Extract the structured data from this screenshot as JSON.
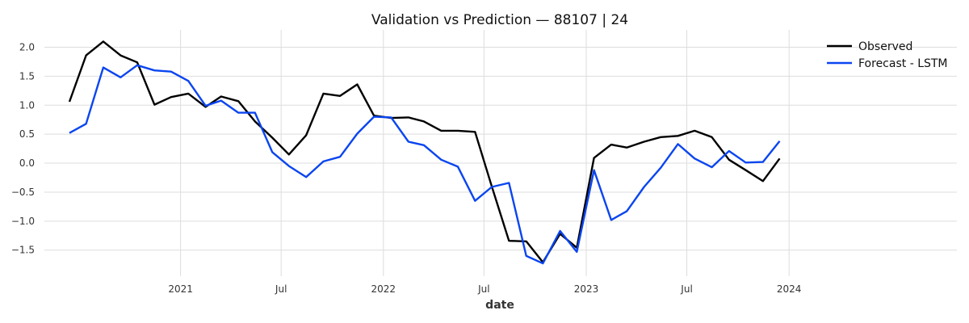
{
  "chart_data": {
    "type": "line",
    "title": "Validation vs Prediction — 88107 | 24",
    "xlabel": "date",
    "ylabel": "",
    "xlim": [
      "2020-05-01",
      "2024-10-29"
    ],
    "ylim": [
      -1.95,
      2.3
    ],
    "grid": true,
    "legend_position": "top-right",
    "x_ticks": [
      {
        "date": "2021-01-01",
        "label": "2021"
      },
      {
        "date": "2021-07-01",
        "label": "Jul"
      },
      {
        "date": "2022-01-01",
        "label": "2022"
      },
      {
        "date": "2022-07-01",
        "label": "Jul"
      },
      {
        "date": "2023-01-01",
        "label": "2023"
      },
      {
        "date": "2023-07-01",
        "label": "Jul"
      },
      {
        "date": "2024-01-01",
        "label": "2024"
      }
    ],
    "y_ticks": [
      2.0,
      1.5,
      1.0,
      0.5,
      0.0,
      -0.5,
      -1.0,
      -1.5
    ],
    "y_tick_labels": [
      "2.0",
      "1.5",
      "1.0",
      "0.5",
      "0.0",
      "−0.5",
      "−1.0",
      "−1.5"
    ],
    "x": [
      "2020-07-01",
      "2020-08-31",
      "2020-10-31",
      "2020-12-31",
      "2021-03-02",
      "2021-05-01",
      "2021-07-01",
      "2021-08-31",
      "2021-10-31",
      "2021-12-31",
      "2022-03-02",
      "2022-05-02",
      "2022-07-01",
      "2022-08-31",
      "2022-10-31",
      "2022-12-31",
      "2023-03-02",
      "2023-05-01",
      "2023-07-01",
      "2023-08-31",
      "2023-10-31",
      "2023-12-31",
      "2024-03-01",
      "2024-05-01",
      "2024-07-01",
      "2024-08-31",
      "2024-10-31",
      "2024-12-31"
    ],
    "series": [
      {
        "name": "Observed",
        "color": "#000000",
        "points": [
          [
            "2020-06-15",
            1.06
          ],
          [
            "2020-07-15",
            1.86
          ],
          [
            "2020-08-15",
            2.1
          ],
          [
            "2020-09-15",
            1.86
          ],
          [
            "2020-10-15",
            1.74
          ],
          [
            "2020-11-15",
            1.01
          ],
          [
            "2020-12-15",
            1.14
          ],
          [
            "2021-01-15",
            1.2
          ],
          [
            "2021-02-15",
            0.97
          ],
          [
            "2021-03-15",
            1.15
          ],
          [
            "2021-04-15",
            1.07
          ],
          [
            "2021-05-15",
            0.72
          ],
          [
            "2021-06-15",
            0.44
          ],
          [
            "2021-07-15",
            0.15
          ],
          [
            "2021-08-15",
            0.48
          ],
          [
            "2021-09-15",
            1.2
          ],
          [
            "2021-10-15",
            1.16
          ],
          [
            "2021-11-15",
            1.36
          ],
          [
            "2021-12-15",
            0.82
          ],
          [
            "2022-01-15",
            0.78
          ],
          [
            "2022-02-15",
            0.79
          ],
          [
            "2022-03-15",
            0.72
          ],
          [
            "2022-04-15",
            0.56
          ],
          [
            "2022-05-15",
            0.56
          ],
          [
            "2022-06-15",
            0.54
          ],
          [
            "2022-07-15",
            -0.4
          ],
          [
            "2022-08-15",
            -1.34
          ],
          [
            "2022-09-15",
            -1.35
          ],
          [
            "2022-10-15",
            -1.71
          ],
          [
            "2022-11-15",
            -1.22
          ],
          [
            "2022-12-15",
            -1.46
          ],
          [
            "2023-01-15",
            0.09
          ],
          [
            "2023-02-15",
            0.32
          ],
          [
            "2023-03-15",
            0.27
          ],
          [
            "2023-04-15",
            0.37
          ],
          [
            "2023-05-15",
            0.45
          ],
          [
            "2023-06-15",
            0.47
          ],
          [
            "2023-07-15",
            0.56
          ],
          [
            "2023-08-15",
            0.45
          ],
          [
            "2023-09-15",
            0.06
          ],
          [
            "2023-10-15",
            -0.12
          ],
          [
            "2023-11-15",
            -0.31
          ],
          [
            "2023-12-15",
            0.08
          ]
        ]
      },
      {
        "name": "Forecast - LSTM",
        "color": "#0a45f0",
        "points": [
          [
            "2020-06-15",
            0.52
          ],
          [
            "2020-07-15",
            0.68
          ],
          [
            "2020-08-15",
            1.65
          ],
          [
            "2020-09-15",
            1.48
          ],
          [
            "2020-10-15",
            1.69
          ],
          [
            "2020-11-15",
            1.6
          ],
          [
            "2020-12-15",
            1.58
          ],
          [
            "2021-01-15",
            1.42
          ],
          [
            "2021-02-15",
            0.99
          ],
          [
            "2021-03-15",
            1.08
          ],
          [
            "2021-04-15",
            0.87
          ],
          [
            "2021-05-15",
            0.87
          ],
          [
            "2021-06-15",
            0.19
          ],
          [
            "2021-07-15",
            -0.05
          ],
          [
            "2021-08-15",
            -0.24
          ],
          [
            "2021-09-15",
            0.03
          ],
          [
            "2021-10-15",
            0.11
          ],
          [
            "2021-11-15",
            0.51
          ],
          [
            "2021-12-15",
            0.8
          ],
          [
            "2022-01-15",
            0.79
          ],
          [
            "2022-02-15",
            0.37
          ],
          [
            "2022-03-15",
            0.31
          ],
          [
            "2022-04-15",
            0.06
          ],
          [
            "2022-05-15",
            -0.06
          ],
          [
            "2022-06-15",
            -0.65
          ],
          [
            "2022-07-15",
            -0.41
          ],
          [
            "2022-08-15",
            -0.34
          ],
          [
            "2022-09-15",
            -1.6
          ],
          [
            "2022-10-15",
            -1.73
          ],
          [
            "2022-11-15",
            -1.17
          ],
          [
            "2022-12-15",
            -1.53
          ],
          [
            "2023-01-15",
            -0.12
          ],
          [
            "2023-02-15",
            -0.98
          ],
          [
            "2023-03-15",
            -0.83
          ],
          [
            "2023-04-15",
            -0.41
          ],
          [
            "2023-05-15",
            -0.08
          ],
          [
            "2023-06-15",
            0.33
          ],
          [
            "2023-07-15",
            0.08
          ],
          [
            "2023-08-15",
            -0.07
          ],
          [
            "2023-09-15",
            0.21
          ],
          [
            "2023-10-15",
            0.01
          ],
          [
            "2023-11-15",
            0.02
          ],
          [
            "2023-12-15",
            0.38
          ]
        ]
      }
    ]
  }
}
